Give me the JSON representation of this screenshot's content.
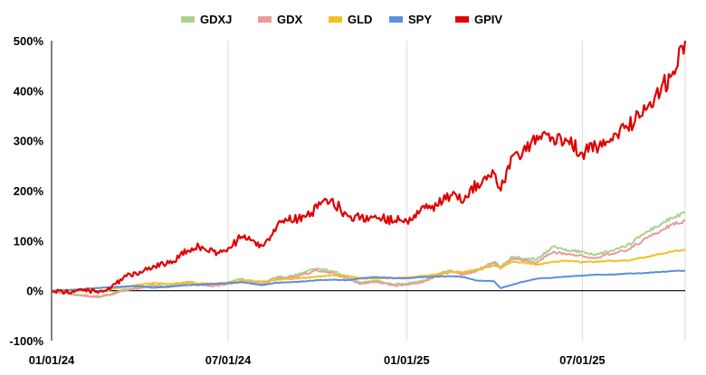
{
  "chart_data": {
    "type": "line",
    "title": "",
    "xlabel": "",
    "ylabel": "",
    "ylim": [
      -100,
      500
    ],
    "y_ticks": [
      -100,
      0,
      100,
      200,
      300,
      400,
      500
    ],
    "y_tick_labels": [
      "-100%",
      "0%",
      "100%",
      "200%",
      "300%",
      "400%",
      "500%"
    ],
    "x_range": [
      "2024-01-01",
      "2025-10-15"
    ],
    "x_ticks": [
      "2024-01-01",
      "2024-07-01",
      "2025-01-01",
      "2025-07-01"
    ],
    "x_tick_labels": [
      "01/01/24",
      "07/01/24",
      "01/01/25",
      "07/01/25"
    ],
    "grid": "vertical",
    "legend": "top-center",
    "series": [
      {
        "name": "GDXJ",
        "color": "#a9d18e",
        "points": [
          [
            "2024-01-01",
            0
          ],
          [
            "2024-01-15",
            -5
          ],
          [
            "2024-02-01",
            -10
          ],
          [
            "2024-02-15",
            -12
          ],
          [
            "2024-03-01",
            -8
          ],
          [
            "2024-03-15",
            2
          ],
          [
            "2024-04-01",
            6
          ],
          [
            "2024-04-15",
            12
          ],
          [
            "2024-05-01",
            8
          ],
          [
            "2024-05-20",
            18
          ],
          [
            "2024-06-01",
            13
          ],
          [
            "2024-06-20",
            12
          ],
          [
            "2024-07-01",
            16
          ],
          [
            "2024-07-15",
            24
          ],
          [
            "2024-08-05",
            14
          ],
          [
            "2024-08-20",
            27
          ],
          [
            "2024-09-01",
            28
          ],
          [
            "2024-09-20",
            38
          ],
          [
            "2024-10-01",
            44
          ],
          [
            "2024-10-15",
            40
          ],
          [
            "2024-11-01",
            26
          ],
          [
            "2024-11-15",
            16
          ],
          [
            "2024-12-01",
            20
          ],
          [
            "2024-12-20",
            12
          ],
          [
            "2025-01-01",
            14
          ],
          [
            "2025-01-15",
            18
          ],
          [
            "2025-02-01",
            32
          ],
          [
            "2025-02-15",
            40
          ],
          [
            "2025-03-01",
            34
          ],
          [
            "2025-03-15",
            42
          ],
          [
            "2025-04-01",
            58
          ],
          [
            "2025-04-08",
            48
          ],
          [
            "2025-04-20",
            68
          ],
          [
            "2025-05-01",
            64
          ],
          [
            "2025-05-15",
            62
          ],
          [
            "2025-06-01",
            88
          ],
          [
            "2025-06-15",
            80
          ],
          [
            "2025-07-01",
            78
          ],
          [
            "2025-07-15",
            72
          ],
          [
            "2025-08-01",
            80
          ],
          [
            "2025-08-15",
            88
          ],
          [
            "2025-09-01",
            112
          ],
          [
            "2025-09-15",
            128
          ],
          [
            "2025-10-01",
            145
          ],
          [
            "2025-10-15",
            155
          ]
        ]
      },
      {
        "name": "GDX",
        "color": "#ea9a9a",
        "points": [
          [
            "2024-01-01",
            0
          ],
          [
            "2024-01-15",
            -5
          ],
          [
            "2024-02-01",
            -9
          ],
          [
            "2024-02-15",
            -12
          ],
          [
            "2024-03-01",
            -9
          ],
          [
            "2024-03-15",
            0
          ],
          [
            "2024-04-01",
            5
          ],
          [
            "2024-04-15",
            10
          ],
          [
            "2024-05-01",
            7
          ],
          [
            "2024-05-20",
            15
          ],
          [
            "2024-06-01",
            11
          ],
          [
            "2024-06-20",
            10
          ],
          [
            "2024-07-01",
            14
          ],
          [
            "2024-07-15",
            20
          ],
          [
            "2024-08-05",
            12
          ],
          [
            "2024-08-20",
            24
          ],
          [
            "2024-09-01",
            25
          ],
          [
            "2024-09-20",
            34
          ],
          [
            "2024-10-01",
            40
          ],
          [
            "2024-10-15",
            36
          ],
          [
            "2024-11-01",
            24
          ],
          [
            "2024-11-15",
            14
          ],
          [
            "2024-12-01",
            18
          ],
          [
            "2024-12-20",
            10
          ],
          [
            "2025-01-01",
            12
          ],
          [
            "2025-01-15",
            16
          ],
          [
            "2025-02-01",
            30
          ],
          [
            "2025-02-15",
            38
          ],
          [
            "2025-03-01",
            32
          ],
          [
            "2025-03-15",
            40
          ],
          [
            "2025-04-01",
            56
          ],
          [
            "2025-04-08",
            44
          ],
          [
            "2025-04-20",
            64
          ],
          [
            "2025-05-01",
            60
          ],
          [
            "2025-05-15",
            56
          ],
          [
            "2025-06-01",
            78
          ],
          [
            "2025-06-15",
            72
          ],
          [
            "2025-07-01",
            70
          ],
          [
            "2025-07-15",
            66
          ],
          [
            "2025-08-01",
            74
          ],
          [
            "2025-08-15",
            80
          ],
          [
            "2025-09-01",
            100
          ],
          [
            "2025-09-15",
            115
          ],
          [
            "2025-10-01",
            132
          ],
          [
            "2025-10-15",
            140
          ]
        ]
      },
      {
        "name": "GLD",
        "color": "#f2bf26",
        "points": [
          [
            "2024-01-01",
            0
          ],
          [
            "2024-01-15",
            -1
          ],
          [
            "2024-02-01",
            0
          ],
          [
            "2024-02-15",
            -2
          ],
          [
            "2024-03-01",
            2
          ],
          [
            "2024-03-15",
            7
          ],
          [
            "2024-04-01",
            12
          ],
          [
            "2024-04-15",
            16
          ],
          [
            "2024-05-01",
            13
          ],
          [
            "2024-05-20",
            17
          ],
          [
            "2024-06-01",
            14
          ],
          [
            "2024-06-20",
            15
          ],
          [
            "2024-07-01",
            16
          ],
          [
            "2024-07-15",
            19
          ],
          [
            "2024-08-05",
            18
          ],
          [
            "2024-08-20",
            22
          ],
          [
            "2024-09-01",
            23
          ],
          [
            "2024-09-20",
            26
          ],
          [
            "2024-10-01",
            28
          ],
          [
            "2024-10-15",
            31
          ],
          [
            "2024-11-01",
            30
          ],
          [
            "2024-11-15",
            24
          ],
          [
            "2024-12-01",
            25
          ],
          [
            "2024-12-20",
            25
          ],
          [
            "2025-01-01",
            26
          ],
          [
            "2025-01-15",
            29
          ],
          [
            "2025-02-01",
            33
          ],
          [
            "2025-02-15",
            38
          ],
          [
            "2025-03-01",
            37
          ],
          [
            "2025-03-15",
            43
          ],
          [
            "2025-04-01",
            50
          ],
          [
            "2025-04-08",
            46
          ],
          [
            "2025-04-20",
            58
          ],
          [
            "2025-05-01",
            56
          ],
          [
            "2025-05-15",
            52
          ],
          [
            "2025-06-01",
            58
          ],
          [
            "2025-06-15",
            60
          ],
          [
            "2025-07-01",
            57
          ],
          [
            "2025-07-15",
            58
          ],
          [
            "2025-08-01",
            60
          ],
          [
            "2025-08-15",
            60
          ],
          [
            "2025-09-01",
            66
          ],
          [
            "2025-09-15",
            72
          ],
          [
            "2025-10-01",
            78
          ],
          [
            "2025-10-15",
            82
          ]
        ]
      },
      {
        "name": "SPY",
        "color": "#5b8fd9",
        "points": [
          [
            "2024-01-01",
            0
          ],
          [
            "2024-01-15",
            1
          ],
          [
            "2024-02-01",
            3
          ],
          [
            "2024-02-15",
            5
          ],
          [
            "2024-03-01",
            7
          ],
          [
            "2024-03-15",
            8
          ],
          [
            "2024-04-01",
            9
          ],
          [
            "2024-04-15",
            6
          ],
          [
            "2024-05-01",
            8
          ],
          [
            "2024-05-20",
            11
          ],
          [
            "2024-06-01",
            12
          ],
          [
            "2024-06-20",
            14
          ],
          [
            "2024-07-01",
            15
          ],
          [
            "2024-07-15",
            17
          ],
          [
            "2024-08-05",
            11
          ],
          [
            "2024-08-20",
            16
          ],
          [
            "2024-09-01",
            17
          ],
          [
            "2024-09-20",
            19
          ],
          [
            "2024-10-01",
            21
          ],
          [
            "2024-10-15",
            22
          ],
          [
            "2024-11-01",
            21
          ],
          [
            "2024-11-15",
            25
          ],
          [
            "2024-12-01",
            27
          ],
          [
            "2024-12-20",
            25
          ],
          [
            "2025-01-01",
            25
          ],
          [
            "2025-01-15",
            27
          ],
          [
            "2025-02-01",
            28
          ],
          [
            "2025-02-15",
            29
          ],
          [
            "2025-03-01",
            27
          ],
          [
            "2025-03-15",
            20
          ],
          [
            "2025-04-01",
            19
          ],
          [
            "2025-04-08",
            5
          ],
          [
            "2025-04-20",
            12
          ],
          [
            "2025-05-01",
            18
          ],
          [
            "2025-05-15",
            24
          ],
          [
            "2025-06-01",
            26
          ],
          [
            "2025-06-15",
            28
          ],
          [
            "2025-07-01",
            30
          ],
          [
            "2025-07-15",
            32
          ],
          [
            "2025-08-01",
            32
          ],
          [
            "2025-08-15",
            34
          ],
          [
            "2025-09-01",
            35
          ],
          [
            "2025-09-15",
            37
          ],
          [
            "2025-10-01",
            39
          ],
          [
            "2025-10-15",
            40
          ]
        ]
      },
      {
        "name": "GPIV",
        "color": "#e00000",
        "points": [
          [
            "2024-01-01",
            0
          ],
          [
            "2024-01-15",
            -3
          ],
          [
            "2024-02-01",
            2
          ],
          [
            "2024-02-15",
            -2
          ],
          [
            "2024-03-01",
            3
          ],
          [
            "2024-03-15",
            26
          ],
          [
            "2024-04-01",
            38
          ],
          [
            "2024-04-15",
            50
          ],
          [
            "2024-05-01",
            55
          ],
          [
            "2024-05-20",
            80
          ],
          [
            "2024-06-01",
            88
          ],
          [
            "2024-06-20",
            76
          ],
          [
            "2024-07-01",
            85
          ],
          [
            "2024-07-15",
            108
          ],
          [
            "2024-08-05",
            90
          ],
          [
            "2024-08-20",
            128
          ],
          [
            "2024-09-01",
            140
          ],
          [
            "2024-09-20",
            150
          ],
          [
            "2024-10-01",
            165
          ],
          [
            "2024-10-15",
            182
          ],
          [
            "2024-11-01",
            150
          ],
          [
            "2024-11-15",
            148
          ],
          [
            "2024-12-01",
            145
          ],
          [
            "2024-12-20",
            140
          ],
          [
            "2025-01-01",
            140
          ],
          [
            "2025-01-15",
            160
          ],
          [
            "2025-02-01",
            170
          ],
          [
            "2025-02-15",
            190
          ],
          [
            "2025-03-01",
            180
          ],
          [
            "2025-03-15",
            215
          ],
          [
            "2025-04-01",
            235
          ],
          [
            "2025-04-08",
            200
          ],
          [
            "2025-04-20",
            270
          ],
          [
            "2025-05-01",
            280
          ],
          [
            "2025-05-15",
            310
          ],
          [
            "2025-06-01",
            305
          ],
          [
            "2025-06-15",
            300
          ],
          [
            "2025-07-01",
            275
          ],
          [
            "2025-07-15",
            290
          ],
          [
            "2025-08-01",
            300
          ],
          [
            "2025-08-15",
            330
          ],
          [
            "2025-09-01",
            350
          ],
          [
            "2025-09-15",
            395
          ],
          [
            "2025-10-01",
            430
          ],
          [
            "2025-10-15",
            500
          ]
        ]
      }
    ]
  }
}
